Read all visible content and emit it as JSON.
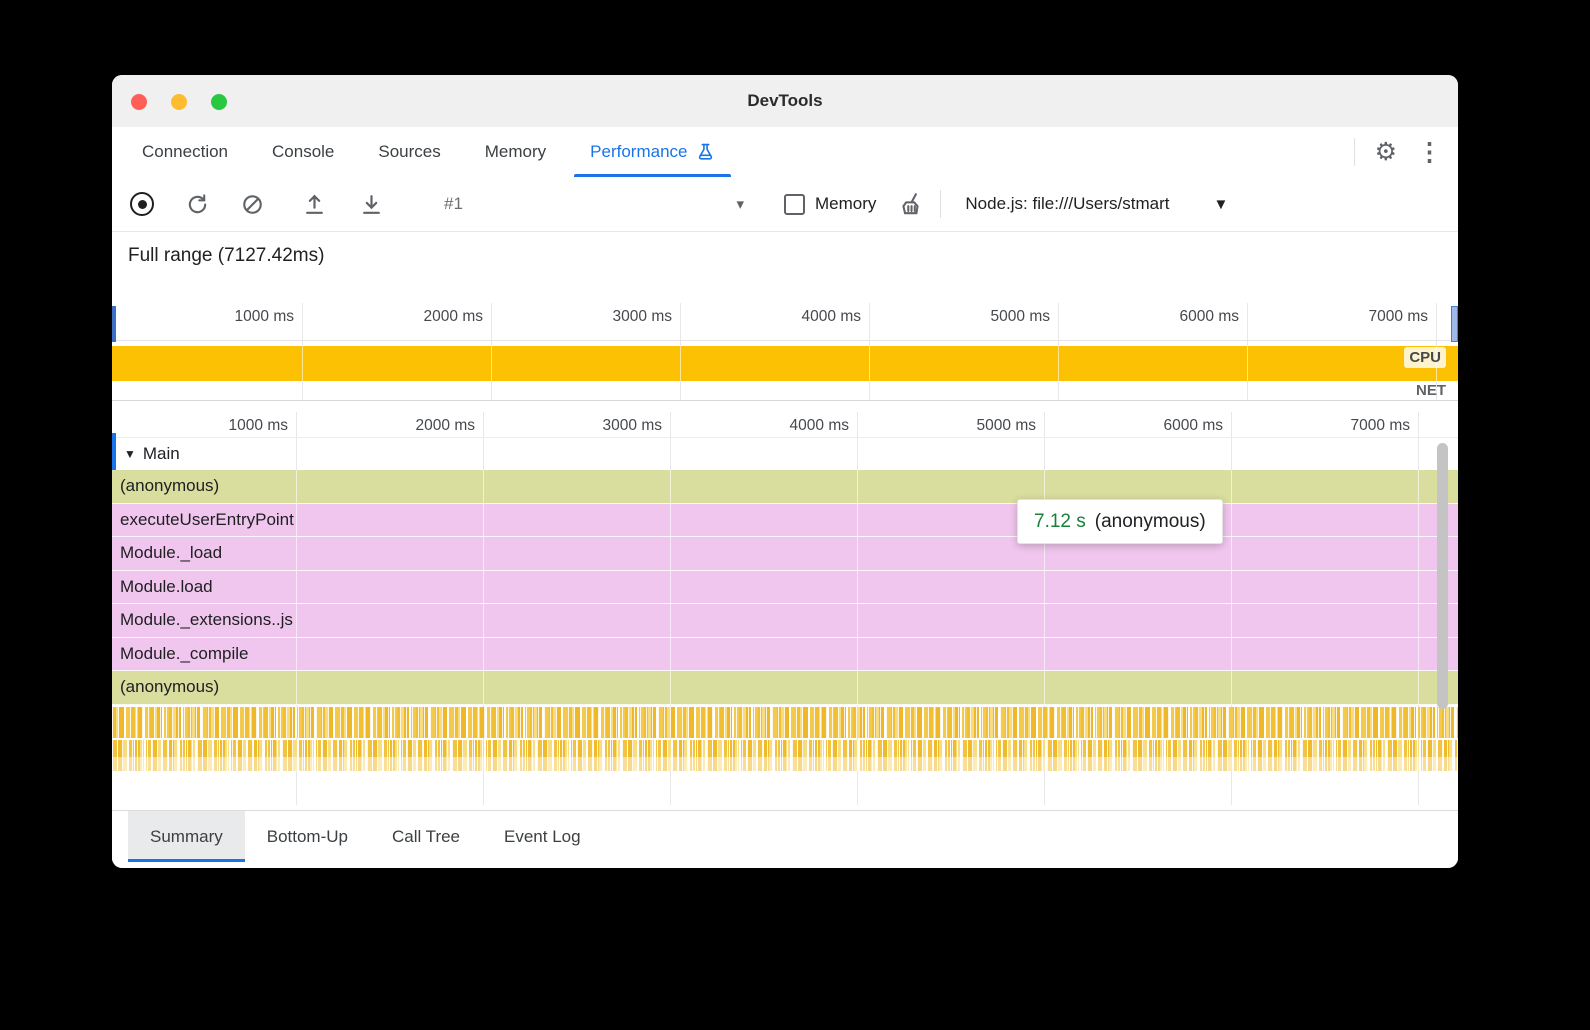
{
  "window": {
    "title": "DevTools"
  },
  "tabs": {
    "items": [
      {
        "label": "Connection",
        "active": false
      },
      {
        "label": "Console",
        "active": false
      },
      {
        "label": "Sources",
        "active": false
      },
      {
        "label": "Memory",
        "active": false
      },
      {
        "label": "Performance",
        "active": true,
        "icon": "flask-icon"
      }
    ]
  },
  "toolbar": {
    "session_label": "#1",
    "memory_label": "Memory",
    "memory_checked": false,
    "target_label": "Node.js: file:///Users/stmart"
  },
  "overview": {
    "full_range_label": "Full range (7127.42ms)",
    "ticks": [
      "1000 ms",
      "2000 ms",
      "3000 ms",
      "4000 ms",
      "5000 ms",
      "6000 ms",
      "7000 ms"
    ],
    "cpu_label": "CPU",
    "net_label": "NET"
  },
  "flame": {
    "ticks": [
      "1000 ms",
      "2000 ms",
      "3000 ms",
      "4000 ms",
      "5000 ms",
      "6000 ms",
      "7000 ms"
    ],
    "track_label": "Main",
    "rows": [
      {
        "label": "(anonymous)",
        "kind": "olive"
      },
      {
        "label": "executeUserEntryPoint",
        "kind": "pink"
      },
      {
        "label": "Module._load",
        "kind": "pink"
      },
      {
        "label": "Module.load",
        "kind": "pink"
      },
      {
        "label": "Module._extensions..js",
        "kind": "pink"
      },
      {
        "label": "Module._compile",
        "kind": "pink"
      },
      {
        "label": "(anonymous)",
        "kind": "olive"
      },
      {
        "label": "",
        "kind": "stripes"
      },
      {
        "label": "",
        "kind": "stripes2"
      }
    ],
    "tooltip": {
      "duration": "7.12 s",
      "label": "(anonymous)"
    }
  },
  "bottom_tabs": {
    "items": [
      {
        "label": "Summary",
        "active": true
      },
      {
        "label": "Bottom-Up",
        "active": false
      },
      {
        "label": "Call Tree",
        "active": false
      },
      {
        "label": "Event Log",
        "active": false
      }
    ]
  },
  "icons": {
    "gear": "⚙",
    "kebab": "⋮",
    "dropdown_caret": "▾",
    "target_caret": "▼",
    "disclosure": "▼"
  },
  "colors": {
    "accent": "#1a73e8",
    "cpu_band": "#fcc102",
    "row_pink": "#f0c6ee",
    "row_olive": "#d9dd9e",
    "tooltip_green": "#188038"
  }
}
